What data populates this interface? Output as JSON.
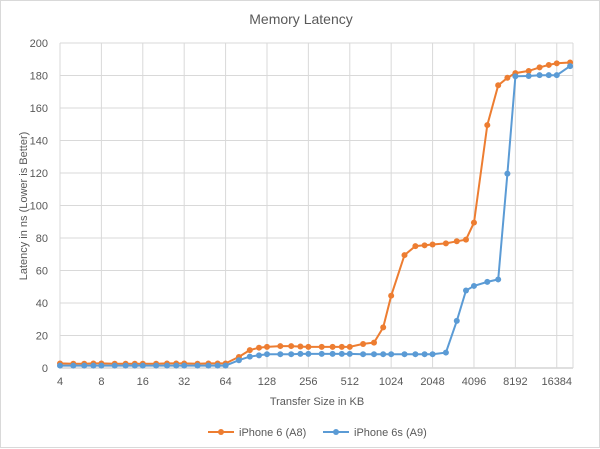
{
  "chart_data": {
    "type": "line",
    "title": "Memory Latency",
    "xlabel": "Transfer Size in KB",
    "ylabel": "Latency in ns (Lower is Better)",
    "x_scale": "log2",
    "xlim": [
      4,
      21504
    ],
    "ylim": [
      0,
      200
    ],
    "y_ticks": [
      0,
      20,
      40,
      60,
      80,
      100,
      120,
      140,
      160,
      180,
      200
    ],
    "x_ticks": [
      4,
      8,
      16,
      32,
      64,
      128,
      256,
      512,
      1024,
      2048,
      4096,
      8192,
      16384
    ],
    "grid": true,
    "legend_position": "bottom",
    "x": [
      4,
      5,
      6,
      7,
      8,
      10,
      12,
      14,
      16,
      20,
      24,
      28,
      32,
      40,
      48,
      56,
      64,
      80,
      96,
      112,
      128,
      160,
      192,
      224,
      256,
      320,
      384,
      448,
      512,
      640,
      768,
      896,
      1024,
      1280,
      1536,
      1792,
      2048,
      2560,
      3072,
      3584,
      4096,
      5120,
      6144,
      7168,
      8192,
      10240,
      12288,
      14336,
      16384,
      20480
    ],
    "series": [
      {
        "name": "iPhone 6 (A8)",
        "color": "#ED7D31",
        "values": [
          2.8,
          2.6,
          2.6,
          2.8,
          2.8,
          2.6,
          2.6,
          2.6,
          2.6,
          2.6,
          2.8,
          2.8,
          2.8,
          2.6,
          2.8,
          2.8,
          2.8,
          6.8,
          11,
          12.5,
          13,
          13.5,
          13.5,
          13.2,
          13,
          13,
          13,
          13,
          13,
          14.8,
          15.6,
          25,
          44.5,
          69.5,
          75,
          75.5,
          76,
          76.7,
          78,
          79,
          89.5,
          149.5,
          174,
          178.6,
          181.5,
          182.8,
          185,
          186.5,
          187.5,
          188
        ]
      },
      {
        "name": "iPhone 6s (A9)",
        "color": "#5B9BD5",
        "values": [
          1.5,
          1.5,
          1.5,
          1.5,
          1.5,
          1.5,
          1.5,
          1.5,
          1.5,
          1.5,
          1.5,
          1.5,
          1.5,
          1.5,
          1.5,
          1.5,
          1.5,
          4.8,
          7,
          7.8,
          8.5,
          8.5,
          8.5,
          8.7,
          8.7,
          8.7,
          8.7,
          8.7,
          8.7,
          8.5,
          8.5,
          8.5,
          8.5,
          8.5,
          8.5,
          8.5,
          8.5,
          9.5,
          29,
          47.7,
          50.5,
          53,
          54.5,
          119.6,
          179.5,
          179.7,
          180.2,
          180.2,
          180.2,
          185.8
        ]
      }
    ]
  }
}
